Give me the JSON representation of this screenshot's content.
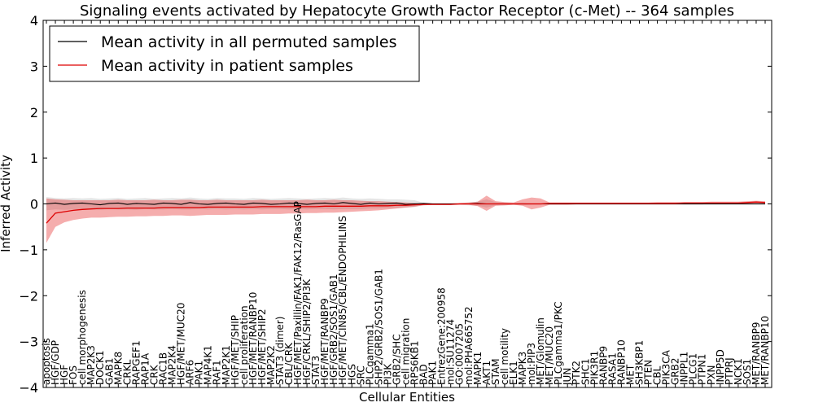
{
  "chart_data": {
    "type": "line",
    "title": "Signaling events activated by Hepatocyte Growth Factor Receptor (c-Met) -- 364 samples",
    "xlabel": "Cellular Entities",
    "ylabel": "Inferred Activity",
    "ylim": [
      -4,
      4
    ],
    "yticks": [
      4,
      3,
      2,
      1,
      0,
      -1,
      -2,
      -3,
      -4
    ],
    "ytick_labels": [
      "4",
      "3",
      "2",
      "1",
      "0",
      "−1",
      "−2",
      "−3",
      "−4"
    ],
    "legend": {
      "placement": "top-left",
      "entries": [
        "Mean activity in all permuted samples",
        "Mean activity in patient samples"
      ]
    },
    "categories": [
      "apoptosis",
      "HGF/GDP",
      "HGF",
      "FOS",
      "cell morphogenesis",
      "MAP2K3",
      "DOCK1",
      "GAB1",
      "MAPK8",
      "CRKL",
      "RAPGEF1",
      "RAP1A",
      "CRK",
      "RAC1B",
      "MAP2K4",
      "HGF/MET/MUC20",
      "ARF6",
      "PAK1",
      "MAP4K1",
      "RAF1",
      "MAP2K1",
      "HGF/MET/SHIP",
      "cell proliferation",
      "HGF/MET/RANBP10",
      "HGF/MET/SHIP2",
      "MAP2K2",
      "STAT3 (dimer)",
      "CBL/CRK",
      "HGF/MET/Paxillin/FAK1/FAK12/RasGAP",
      "HGF/CRKL/SHIP2/PI3K",
      "STAT3",
      "HGF/MET/RANBP9",
      "HGF/GRB2/SOS1/GAB1",
      "HGF/MET/CIN85/CBL/ENDOPHILINS",
      "HGS",
      "SRC",
      "PLCgamma1",
      "SHP2/GRB2/SOS1/GAB1",
      "PI3K",
      "GRB2/SHC",
      "cell migration",
      "RPS6KB1",
      "BAD",
      "PAK1",
      "EntrezGene:200958",
      "mol:SU11274",
      "GO:0007205",
      "mol:PHA665752",
      "MAPK1",
      "AKT1",
      "STAM",
      "cell motility",
      "ELK1",
      "MAPK3",
      "mol:PIP3",
      "MET/Glomulin",
      "MET/MUC20",
      "PLCgamma1/PKC",
      "JUN",
      "PTK2",
      "SHC1",
      "PIK3R1",
      "RANBP9",
      "RASA1",
      "RANBP10",
      "MET",
      "SH3KBP1",
      "PTEN",
      "CBL",
      "PIK3CA",
      "GRB2",
      "INPPL1",
      "PLCG1",
      "PTPN1",
      "PXN",
      "INPP5D",
      "PTPRJ",
      "NCK1",
      "SOS1",
      "MET/RANBP9",
      "MET/RANBP10"
    ],
    "series": [
      {
        "name": "Mean activity in all permuted samples",
        "color": "#000000",
        "values": [
          0.0,
          0.02,
          -0.01,
          0.01,
          0.02,
          0.0,
          -0.02,
          0.01,
          0.02,
          -0.01,
          0.01,
          0.0,
          -0.01,
          0.02,
          0.01,
          -0.01,
          0.03,
          0.0,
          -0.01,
          0.01,
          0.02,
          0.0,
          -0.01,
          0.02,
          0.01,
          -0.01,
          0.0,
          0.02,
          0.01,
          -0.01,
          0.01,
          0.02,
          0.0,
          0.03,
          0.01,
          -0.01,
          0.02,
          0.0,
          0.01,
          0.02,
          -0.01,
          0.0,
          0.01,
          0.0,
          0.0,
          0.0,
          0.0,
          0.0,
          0.01,
          0.0,
          0.0,
          0.0,
          0.0,
          0.0,
          0.0,
          0.0,
          0.0,
          0.0,
          0.0,
          0.0,
          0.0,
          0.0,
          0.0,
          0.0,
          0.0,
          0.0,
          0.0,
          0.0,
          0.0,
          0.0,
          0.0,
          0.0,
          0.0,
          0.0,
          0.0,
          0.0,
          0.0,
          0.0,
          0.0,
          0.0,
          0.0
        ],
        "band_low": [
          -0.14,
          -0.12,
          -0.13,
          -0.12,
          -0.13,
          -0.12,
          -0.13,
          -0.11,
          -0.12,
          -0.12,
          -0.13,
          -0.11,
          -0.12,
          -0.12,
          -0.11,
          -0.12,
          -0.12,
          -0.11,
          -0.12,
          -0.11,
          -0.12,
          -0.11,
          -0.12,
          -0.11,
          -0.12,
          -0.11,
          -0.11,
          -0.12,
          -0.11,
          -0.12,
          -0.11,
          -0.11,
          -0.12,
          -0.11,
          -0.11,
          -0.11,
          -0.1,
          -0.1,
          -0.09,
          -0.09,
          -0.08,
          -0.07,
          -0.02,
          -0.02,
          -0.02,
          -0.02,
          -0.02,
          -0.03,
          -0.04,
          -0.08,
          -0.03,
          -0.03,
          -0.02,
          -0.03,
          -0.02,
          -0.02,
          -0.02,
          -0.02,
          -0.02,
          -0.02,
          -0.02,
          -0.02,
          -0.02,
          -0.02,
          -0.02,
          -0.02,
          -0.02,
          -0.02,
          -0.02,
          -0.02,
          -0.02,
          -0.02,
          -0.02,
          -0.02,
          -0.02,
          -0.02,
          -0.02,
          -0.02,
          -0.02,
          -0.02,
          -0.02
        ],
        "band_high": [
          0.15,
          0.13,
          0.12,
          0.13,
          0.12,
          0.13,
          0.11,
          0.12,
          0.13,
          0.11,
          0.12,
          0.13,
          0.11,
          0.12,
          0.13,
          0.12,
          0.14,
          0.12,
          0.11,
          0.13,
          0.12,
          0.12,
          0.11,
          0.13,
          0.12,
          0.11,
          0.12,
          0.13,
          0.12,
          0.11,
          0.12,
          0.13,
          0.12,
          0.14,
          0.12,
          0.11,
          0.12,
          0.11,
          0.1,
          0.1,
          0.09,
          0.08,
          0.02,
          0.02,
          0.02,
          0.02,
          0.02,
          0.03,
          0.05,
          0.1,
          0.04,
          0.03,
          0.02,
          0.03,
          0.02,
          0.02,
          0.02,
          0.02,
          0.02,
          0.02,
          0.02,
          0.02,
          0.02,
          0.02,
          0.02,
          0.02,
          0.02,
          0.02,
          0.02,
          0.02,
          0.02,
          0.02,
          0.02,
          0.02,
          0.02,
          0.02,
          0.02,
          0.02,
          0.02,
          0.02,
          0.02
        ]
      },
      {
        "name": "Mean activity in patient samples",
        "color": "#dd0000",
        "values": [
          -0.42,
          -0.2,
          -0.17,
          -0.14,
          -0.12,
          -0.11,
          -0.1,
          -0.1,
          -0.1,
          -0.09,
          -0.09,
          -0.09,
          -0.09,
          -0.08,
          -0.08,
          -0.08,
          -0.08,
          -0.08,
          -0.07,
          -0.07,
          -0.07,
          -0.07,
          -0.07,
          -0.07,
          -0.06,
          -0.06,
          -0.06,
          -0.06,
          -0.06,
          -0.06,
          -0.06,
          -0.05,
          -0.05,
          -0.05,
          -0.05,
          -0.05,
          -0.04,
          -0.04,
          -0.04,
          -0.03,
          -0.03,
          -0.02,
          -0.01,
          -0.01,
          -0.01,
          -0.01,
          0.0,
          0.0,
          0.0,
          0.0,
          0.0,
          0.0,
          0.0,
          0.0,
          0.0,
          0.0,
          0.01,
          0.01,
          0.01,
          0.01,
          0.01,
          0.01,
          0.01,
          0.01,
          0.01,
          0.01,
          0.01,
          0.01,
          0.01,
          0.01,
          0.01,
          0.02,
          0.02,
          0.02,
          0.02,
          0.02,
          0.02,
          0.02,
          0.03,
          0.04,
          0.03
        ],
        "band_low": [
          -0.85,
          -0.5,
          -0.4,
          -0.35,
          -0.32,
          -0.3,
          -0.3,
          -0.29,
          -0.28,
          -0.28,
          -0.27,
          -0.27,
          -0.26,
          -0.26,
          -0.25,
          -0.25,
          -0.26,
          -0.25,
          -0.24,
          -0.24,
          -0.24,
          -0.23,
          -0.23,
          -0.23,
          -0.22,
          -0.22,
          -0.22,
          -0.21,
          -0.21,
          -0.2,
          -0.2,
          -0.19,
          -0.19,
          -0.18,
          -0.17,
          -0.16,
          -0.15,
          -0.14,
          -0.12,
          -0.1,
          -0.08,
          -0.06,
          -0.03,
          -0.02,
          -0.02,
          -0.02,
          -0.02,
          -0.02,
          -0.05,
          -0.15,
          -0.04,
          -0.03,
          -0.02,
          -0.04,
          -0.12,
          -0.08,
          -0.02,
          -0.02,
          -0.02,
          -0.01,
          -0.01,
          -0.01,
          -0.01,
          -0.01,
          -0.01,
          -0.01,
          -0.01,
          -0.01,
          -0.01,
          -0.01,
          -0.01,
          -0.01,
          -0.01,
          -0.01,
          0.0,
          0.0,
          0.0,
          0.0,
          0.0,
          0.0,
          0.0
        ],
        "band_high": [
          0.12,
          0.1,
          0.09,
          0.08,
          0.08,
          0.08,
          0.08,
          0.08,
          0.09,
          0.08,
          0.08,
          0.08,
          0.09,
          0.08,
          0.08,
          0.09,
          0.09,
          0.08,
          0.08,
          0.09,
          0.08,
          0.08,
          0.08,
          0.08,
          0.09,
          0.08,
          0.08,
          0.08,
          0.08,
          0.09,
          0.08,
          0.08,
          0.09,
          0.08,
          0.08,
          0.07,
          0.06,
          0.06,
          0.05,
          0.04,
          0.03,
          0.02,
          0.01,
          0.01,
          0.01,
          0.01,
          0.02,
          0.03,
          0.05,
          0.18,
          0.06,
          0.04,
          0.03,
          0.1,
          0.14,
          0.12,
          0.03,
          0.03,
          0.03,
          0.03,
          0.03,
          0.03,
          0.03,
          0.03,
          0.03,
          0.03,
          0.03,
          0.03,
          0.04,
          0.04,
          0.04,
          0.04,
          0.04,
          0.04,
          0.05,
          0.05,
          0.05,
          0.05,
          0.06,
          0.07,
          0.06
        ]
      }
    ]
  }
}
